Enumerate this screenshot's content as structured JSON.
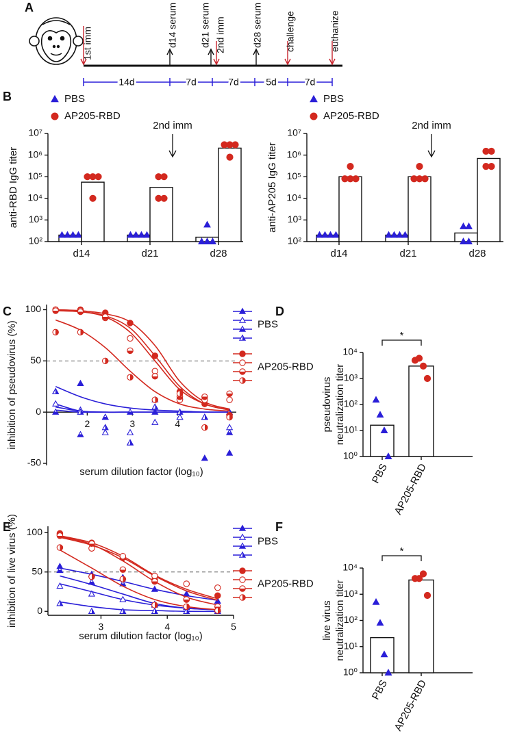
{
  "panels": [
    "A",
    "B",
    "C",
    "D",
    "E",
    "F"
  ],
  "timeline": {
    "events": [
      {
        "label": "1st imm",
        "color": "#c8232c",
        "direction": "down"
      },
      {
        "label": "d14 serum",
        "color": "#111111",
        "direction": "up"
      },
      {
        "label": "d21 serum",
        "color": "#111111",
        "direction": "up"
      },
      {
        "label": "2nd imm",
        "color": "#c8232c",
        "direction": "down"
      },
      {
        "label": "d28 serum",
        "color": "#111111",
        "direction": "up"
      },
      {
        "label": "challenge",
        "color": "#c8232c",
        "direction": "down"
      },
      {
        "label": "euthanize",
        "color": "#c8232c",
        "direction": "down"
      }
    ],
    "intervals": [
      "14d",
      "7d",
      "7d",
      "5d",
      "7d"
    ]
  },
  "chart_data": [
    {
      "type": "bar",
      "log_scale": true,
      "ylabel": "anti-RBD IgG titer",
      "categories": [
        "d14",
        "d21",
        "d28"
      ],
      "bar_color": "#ffffff",
      "series": [
        {
          "name": "PBS",
          "color": "#2a1fd8",
          "marker": "triangle",
          "values": [
            200,
            200,
            160
          ],
          "points": [
            [
              200,
              200,
              200,
              200
            ],
            [
              200,
              200,
              200,
              200
            ],
            [
              600,
              100,
              100,
              100
            ]
          ]
        },
        {
          "name": "AP205-RBD",
          "color": "#d3291f",
          "marker": "circle",
          "values": [
            56000,
            32000,
            2100000
          ],
          "points": [
            [
              100000,
              100000,
              100000,
              10000
            ],
            [
              100000,
              100000,
              10000,
              10000
            ],
            [
              3000000,
              3000000,
              3000000,
              800000
            ]
          ]
        }
      ],
      "ylim": [
        100,
        10000000
      ],
      "yticks": [
        {
          "value": 100,
          "label": "10²"
        },
        {
          "value": 1000,
          "label": "10³"
        },
        {
          "value": 10000,
          "label": "10⁴"
        },
        {
          "value": 100000,
          "label": "10⁵"
        },
        {
          "value": 1000000,
          "label": "10⁶"
        },
        {
          "value": 10000000,
          "label": "10⁷"
        }
      ],
      "annotation": "2nd imm",
      "legend": "upper left"
    },
    {
      "type": "bar",
      "log_scale": true,
      "ylabel": "anti-AP205 IgG titer",
      "categories": [
        "d14",
        "d21",
        "d28"
      ],
      "bar_color": "#ffffff",
      "series": [
        {
          "name": "PBS",
          "color": "#2a1fd8",
          "marker": "triangle",
          "values": [
            200,
            200,
            250
          ],
          "points": [
            [
              200,
              200,
              200,
              200
            ],
            [
              200,
              200,
              200,
              200
            ],
            [
              500,
              500,
              100,
              100
            ]
          ]
        },
        {
          "name": "AP205-RBD",
          "color": "#d3291f",
          "marker": "circle",
          "values": [
            100000,
            100000,
            700000
          ],
          "points": [
            [
              300000,
              80000,
              80000,
              80000
            ],
            [
              300000,
              80000,
              80000,
              80000
            ],
            [
              1500000,
              1500000,
              300000,
              300000
            ]
          ]
        }
      ],
      "ylim": [
        100,
        10000000
      ],
      "yticks": [
        {
          "value": 100,
          "label": "10²"
        },
        {
          "value": 1000,
          "label": "10³"
        },
        {
          "value": 10000,
          "label": "10⁴"
        },
        {
          "value": 100000,
          "label": "10⁵"
        },
        {
          "value": 1000000,
          "label": "10⁶"
        },
        {
          "value": 10000000,
          "label": "10⁷"
        }
      ],
      "annotation": "2nd imm",
      "legend": "upper left"
    },
    {
      "type": "line",
      "xlabel": "serum dilution factor (log₁₀)",
      "ylabel": "inhibition of pseudovirus (%)",
      "x": [
        1.3,
        1.85,
        2.4,
        2.95,
        3.5,
        4.05,
        4.6,
        5.15
      ],
      "xlim": [
        1.1,
        5.3
      ],
      "xticks": [
        2,
        3,
        4
      ],
      "ylim": [
        -52,
        105
      ],
      "yticks": [
        -50,
        0,
        50,
        100
      ],
      "reference_line": 50,
      "groups": [
        {
          "name": "PBS",
          "color": "#2a1fd8",
          "series": [
            {
              "marker": "triangle",
              "values": [
                20,
                28,
                -5,
                -30,
                0,
                -5,
                -45,
                -40
              ],
              "fit": [
                25,
                15,
                8,
                4,
                2,
                1,
                0,
                0
              ]
            },
            {
              "marker": "triangle-open",
              "values": [
                8,
                2,
                -20,
                -20,
                -10,
                -5,
                -5,
                -15
              ],
              "fit": [
                8,
                1,
                0,
                0,
                0,
                0,
                0,
                0
              ]
            },
            {
              "marker": "triangle-half",
              "values": [
                0,
                -22,
                -5,
                0,
                12,
                15,
                -5,
                -20
              ],
              "fit": [
                2,
                0,
                0,
                0,
                0,
                0,
                0,
                0
              ]
            },
            {
              "marker": "triangle-half2",
              "values": [
                20,
                0,
                -15,
                -30,
                5,
                0,
                -5,
                0
              ],
              "fit": [
                5,
                1,
                0,
                0,
                0,
                0,
                0,
                0
              ]
            }
          ]
        },
        {
          "name": "AP205-RBD",
          "color": "#d3291f",
          "series": [
            {
              "marker": "circle",
              "values": [
                100,
                100,
                97,
                87,
                55,
                20,
                8,
                -3
              ],
              "fit": [
                100,
                99,
                96,
                88,
                65,
                30,
                10,
                3
              ]
            },
            {
              "marker": "circle-open",
              "values": [
                100,
                99,
                92,
                72,
                40,
                12,
                12,
                12
              ],
              "fit": [
                99,
                98,
                94,
                82,
                55,
                25,
                8,
                2
              ]
            },
            {
              "marker": "circle-half",
              "values": [
                99,
                98,
                93,
                60,
                35,
                15,
                15,
                18
              ],
              "fit": [
                99,
                98,
                93,
                78,
                50,
                22,
                8,
                2
              ]
            },
            {
              "marker": "circle-half2",
              "values": [
                78,
                78,
                50,
                34,
                12,
                18,
                -15,
                -5
              ],
              "fit": [
                90,
                80,
                63,
                40,
                20,
                8,
                3,
                1
              ]
            }
          ]
        }
      ]
    },
    {
      "type": "bar",
      "log_scale": true,
      "ylabel": [
        "pseudovirus",
        "neutralization titer"
      ],
      "categories": [
        "PBS",
        "AP205-RBD"
      ],
      "values": [
        16,
        3000
      ],
      "bar_color": "#ffffff",
      "points": [
        [
          150,
          40,
          10,
          1
        ],
        [
          5000,
          6000,
          3000,
          1000
        ]
      ],
      "point_colors": [
        "#2a1fd8",
        "#d3291f"
      ],
      "point_markers": [
        "triangle",
        "circle"
      ],
      "ylim": [
        1,
        10000
      ],
      "yticks": [
        {
          "value": 1,
          "label": "10⁰"
        },
        {
          "value": 10,
          "label": "10¹"
        },
        {
          "value": 100,
          "label": "10²"
        },
        {
          "value": 1000,
          "label": "10³"
        },
        {
          "value": 10000,
          "label": "10⁴"
        }
      ],
      "significance": "*"
    },
    {
      "type": "line",
      "xlabel": "serum dilution factor (log₁₀)",
      "ylabel": "inhibition of live virus (%)",
      "x": [
        2.38,
        2.86,
        3.33,
        3.81,
        4.29,
        4.76
      ],
      "xlim": [
        2.2,
        5.0
      ],
      "xticks": [
        3,
        4,
        5
      ],
      "ylim": [
        -5,
        108
      ],
      "yticks": [
        0,
        50,
        100
      ],
      "reference_line": 50,
      "groups": [
        {
          "name": "PBS",
          "color": "#2a1fd8",
          "series": [
            {
              "marker": "triangle",
              "values": [
                57,
                47,
                43,
                28,
                22,
                13
              ],
              "fit": [
                55,
                47,
                38,
                28,
                20,
                14
              ]
            },
            {
              "marker": "triangle-open",
              "values": [
                32,
                22,
                15,
                9,
                5,
                3
              ],
              "fit": [
                35,
                25,
                15,
                8,
                4,
                2
              ]
            },
            {
              "marker": "triangle-half",
              "values": [
                52,
                37,
                35,
                8,
                5,
                2
              ],
              "fit": [
                45,
                34,
                22,
                10,
                4,
                2
              ]
            },
            {
              "marker": "triangle-half2",
              "values": [
                10,
                0,
                0,
                0,
                0,
                0
              ],
              "fit": [
                12,
                6,
                2,
                1,
                0,
                0
              ]
            }
          ]
        },
        {
          "name": "AP205-RBD",
          "color": "#d3291f",
          "series": [
            {
              "marker": "circle",
              "values": [
                99,
                87,
                68,
                40,
                15,
                20
              ],
              "fit": [
                96,
                87,
                70,
                46,
                28,
                16
              ]
            },
            {
              "marker": "circle-open",
              "values": [
                97,
                80,
                70,
                45,
                35,
                30
              ],
              "fit": [
                94,
                84,
                68,
                45,
                26,
                14
              ]
            },
            {
              "marker": "circle-half",
              "values": [
                96,
                86,
                53,
                38,
                15,
                6
              ],
              "fit": [
                95,
                85,
                64,
                38,
                18,
                8
              ]
            },
            {
              "marker": "circle-half2",
              "values": [
                81,
                44,
                41,
                8,
                6,
                1
              ],
              "fit": [
                78,
                55,
                32,
                15,
                6,
                2
              ]
            }
          ]
        }
      ]
    },
    {
      "type": "bar",
      "log_scale": true,
      "ylabel": [
        "live virus",
        "neutralization titer"
      ],
      "categories": [
        "PBS",
        "AP205-RBD"
      ],
      "values": [
        22,
        3500
      ],
      "bar_color": "#ffffff",
      "points": [
        [
          500,
          80,
          5,
          1
        ],
        [
          4000,
          4000,
          6000,
          900
        ]
      ],
      "point_colors": [
        "#2a1fd8",
        "#d3291f"
      ],
      "point_markers": [
        "triangle",
        "circle"
      ],
      "ylim": [
        1,
        10000
      ],
      "yticks": [
        {
          "value": 1,
          "label": "10⁰"
        },
        {
          "value": 10,
          "label": "10¹"
        },
        {
          "value": 100,
          "label": "10²"
        },
        {
          "value": 1000,
          "label": "10³"
        },
        {
          "value": 10000,
          "label": "10⁴"
        }
      ],
      "significance": "*"
    }
  ]
}
